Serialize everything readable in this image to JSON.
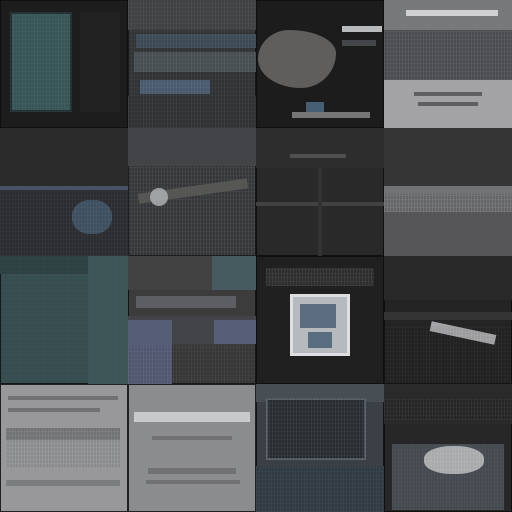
{
  "grid": {
    "rows": 4,
    "cols": 4
  },
  "tiles": [
    {
      "row": 1,
      "col": 1,
      "icon": "thumbnail-teal-panel"
    },
    {
      "row": 1,
      "col": 2,
      "icon": "thumbnail-collage"
    },
    {
      "row": 1,
      "col": 3,
      "icon": "thumbnail-rock-photo"
    },
    {
      "row": 1,
      "col": 4,
      "icon": "thumbnail-text-page"
    },
    {
      "row": 2,
      "col": 1,
      "icon": "thumbnail-dark-scene"
    },
    {
      "row": 2,
      "col": 2,
      "icon": "thumbnail-bird-photo"
    },
    {
      "row": 2,
      "col": 3,
      "icon": "thumbnail-interior"
    },
    {
      "row": 2,
      "col": 4,
      "icon": "thumbnail-horizon"
    },
    {
      "row": 3,
      "col": 1,
      "icon": "thumbnail-teal-map"
    },
    {
      "row": 3,
      "col": 2,
      "icon": "thumbnail-blocks"
    },
    {
      "row": 3,
      "col": 3,
      "icon": "thumbnail-framed-picture"
    },
    {
      "row": 3,
      "col": 4,
      "icon": "thumbnail-gull-photo"
    },
    {
      "row": 4,
      "col": 1,
      "icon": "thumbnail-gray-page"
    },
    {
      "row": 4,
      "col": 2,
      "icon": "thumbnail-gray-caption-page"
    },
    {
      "row": 4,
      "col": 3,
      "icon": "thumbnail-screenshot-collage"
    },
    {
      "row": 4,
      "col": 4,
      "icon": "thumbnail-bright-photo"
    }
  ],
  "colors": {
    "background": "#0b0b0d",
    "teal": "#1f5a5e",
    "slate": "#3b3f48",
    "gray": "#5b5d63",
    "navy": "#2b3c5f"
  }
}
